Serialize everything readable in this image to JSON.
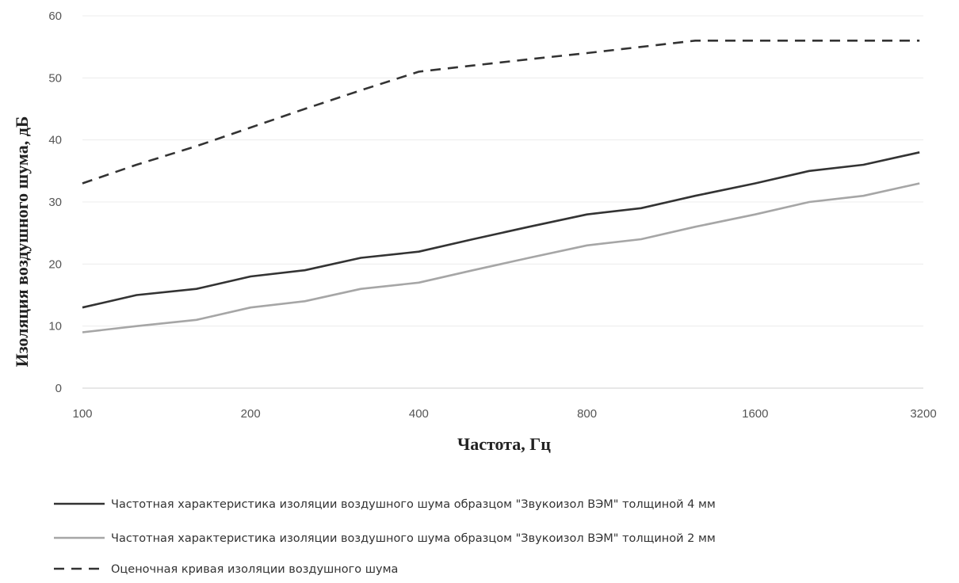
{
  "chart_data": {
    "type": "line",
    "title": "",
    "xlabel": "Частота, Гц",
    "ylabel": "Изоляция воздушного шума, дБ",
    "x_scale": "log2",
    "x_ticks": [
      100,
      200,
      400,
      800,
      1600,
      3200
    ],
    "x": [
      100,
      125,
      160,
      200,
      250,
      315,
      400,
      500,
      630,
      800,
      1000,
      1250,
      1600,
      2000,
      2500,
      3150
    ],
    "ylim": [
      0,
      60
    ],
    "y_ticks": [
      0,
      10,
      20,
      30,
      40,
      50,
      60
    ],
    "grid": "horizontal",
    "legend_position": "bottom",
    "series": [
      {
        "name": "Частотная характеристика изоляции воздушного шума образцом \"Звукоизол ВЭМ\" толщиной 4 мм",
        "color": "#333333",
        "style": "solid",
        "values": [
          13,
          15,
          16,
          18,
          19,
          21,
          22,
          24,
          26,
          28,
          29,
          31,
          33,
          35,
          36,
          38
        ]
      },
      {
        "name": "Частотная характеристика изоляции воздушного шума образцом \"Звукоизол ВЭМ\" толщиной 2 мм",
        "color": "#a6a6a6",
        "style": "solid",
        "values": [
          9,
          10,
          11,
          13,
          14,
          16,
          17,
          19,
          21,
          23,
          24,
          26,
          28,
          30,
          31,
          33
        ]
      },
      {
        "name": "Оценочная кривая изоляции воздушного шума",
        "color": "#333333",
        "style": "dashed",
        "values": [
          33,
          36,
          39,
          42,
          45,
          48,
          51,
          52,
          53,
          54,
          55,
          56,
          56,
          56,
          56,
          56
        ]
      }
    ]
  }
}
